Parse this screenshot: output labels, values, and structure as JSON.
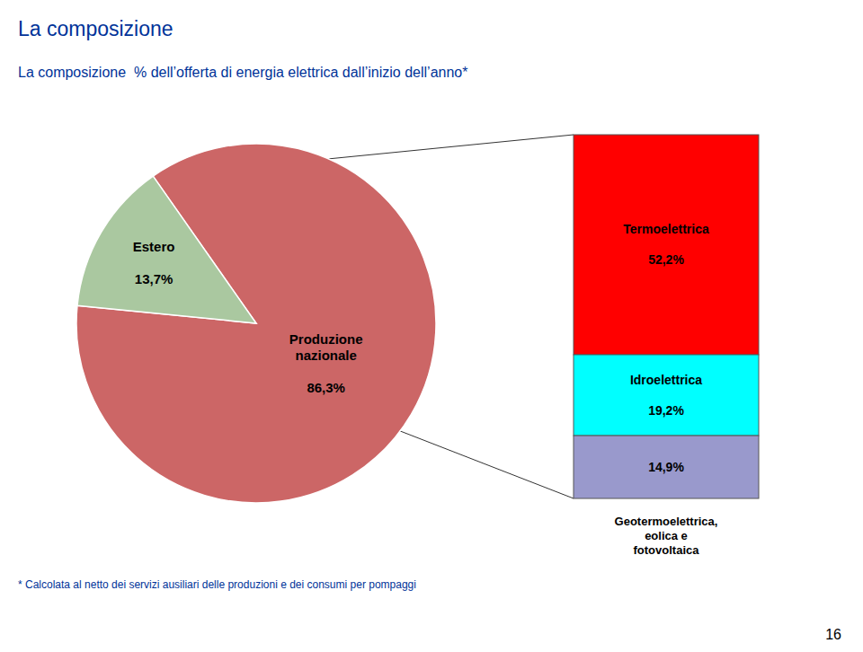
{
  "chart_data": [
    {
      "type": "pie",
      "title": "La composizione",
      "subtitle": "La composizione  % dell’offerta di energia elettrica dall’inizio dell’anno*",
      "categories": [
        "Produzione nazionale",
        "Estero"
      ],
      "values": [
        86.3,
        13.7
      ],
      "value_labels": [
        "86,3%",
        "13,7%"
      ],
      "colors": [
        "#cc6666",
        "#aac8a0"
      ],
      "data_labels": true,
      "annotations": [
        "* Calcolata al netto dei servizi ausiliari delle produzioni e dei consumi per pompaggi",
        "16"
      ]
    },
    {
      "type": "bar",
      "stacked": true,
      "categories": [
        null
      ],
      "series": [
        {
          "name": "Termoelettrica",
          "color": "#ff0000",
          "values": [
            52.2
          ],
          "value_labels": [
            "52,2%"
          ]
        },
        {
          "name": "Idroelettrica",
          "color": "#00ffff",
          "values": [
            19.2
          ],
          "value_labels": [
            "19,2%"
          ]
        },
        {
          "name": "Geotermoelettrica, eolica e fotovoltaica",
          "color": "#9999cc",
          "values": [
            14.9
          ],
          "value_labels": [
            "14,9%"
          ]
        }
      ],
      "ylim": [
        0,
        86.3
      ],
      "tick_labels": false,
      "data_labels": true
    }
  ]
}
